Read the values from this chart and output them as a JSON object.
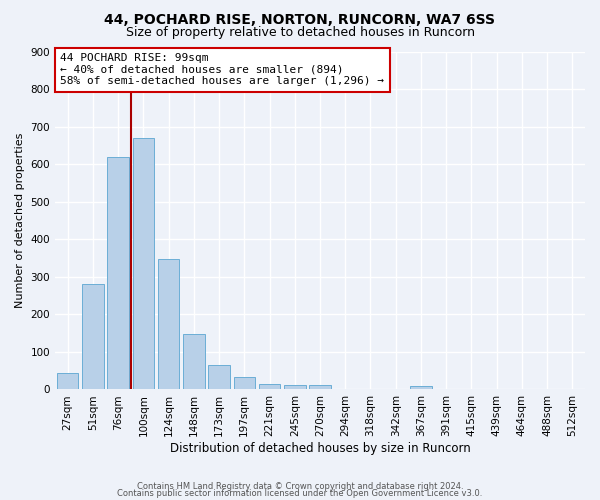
{
  "title1": "44, POCHARD RISE, NORTON, RUNCORN, WA7 6SS",
  "title2": "Size of property relative to detached houses in Runcorn",
  "xlabel": "Distribution of detached houses by size in Runcorn",
  "ylabel": "Number of detached properties",
  "categories": [
    "27sqm",
    "51sqm",
    "76sqm",
    "100sqm",
    "124sqm",
    "148sqm",
    "173sqm",
    "197sqm",
    "221sqm",
    "245sqm",
    "270sqm",
    "294sqm",
    "318sqm",
    "342sqm",
    "367sqm",
    "391sqm",
    "415sqm",
    "439sqm",
    "464sqm",
    "488sqm",
    "512sqm"
  ],
  "values": [
    45,
    280,
    620,
    670,
    348,
    148,
    65,
    32,
    15,
    12,
    11,
    0,
    0,
    0,
    10,
    0,
    0,
    0,
    0,
    0,
    0
  ],
  "bar_color": "#b8d0e8",
  "bar_edge_color": "#6baed6",
  "vline_x": 2.5,
  "vline_color": "#aa0000",
  "annotation_line1": "44 POCHARD RISE: 99sqm",
  "annotation_line2": "← 40% of detached houses are smaller (894)",
  "annotation_line3": "58% of semi-detached houses are larger (1,296) →",
  "annotation_box_color": "#ffffff",
  "annotation_box_edge": "#cc0000",
  "ylim": [
    0,
    900
  ],
  "yticks": [
    0,
    100,
    200,
    300,
    400,
    500,
    600,
    700,
    800,
    900
  ],
  "footer1": "Contains HM Land Registry data © Crown copyright and database right 2024.",
  "footer2": "Contains public sector information licensed under the Open Government Licence v3.0.",
  "bg_color": "#eef2f9",
  "plot_bg_color": "#eef2f9",
  "grid_color": "#ffffff",
  "title_fontsize": 10,
  "subtitle_fontsize": 9,
  "annotation_fontsize": 8,
  "ylabel_fontsize": 8,
  "xlabel_fontsize": 8.5,
  "tick_fontsize": 7.5,
  "footer_fontsize": 6
}
